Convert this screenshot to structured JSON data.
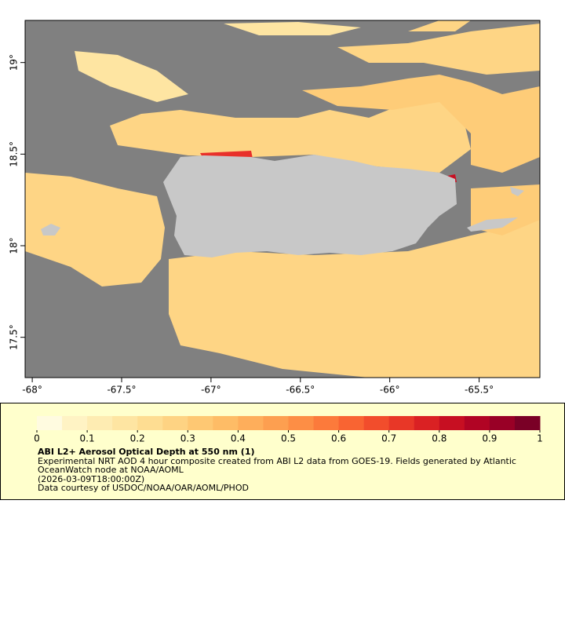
{
  "map": {
    "xlim": [
      -68.04,
      -65.16
    ],
    "ylim": [
      17.28,
      19.23
    ],
    "xticks": [
      {
        "value": -68,
        "label": "-68°"
      },
      {
        "value": -67.5,
        "label": "-67.5°"
      },
      {
        "value": -67,
        "label": "-67°"
      },
      {
        "value": -66.5,
        "label": "-66.5°"
      },
      {
        "value": -66,
        "label": "-66°"
      },
      {
        "value": -65.5,
        "label": "-65.5°"
      }
    ],
    "yticks": [
      {
        "value": 17.5,
        "label": "17.5°"
      },
      {
        "value": 18,
        "label": "18°"
      },
      {
        "value": 18.5,
        "label": "18.5°"
      },
      {
        "value": 19,
        "label": "19°"
      }
    ]
  },
  "colorbar": {
    "range": [
      0,
      1
    ],
    "ticks": [
      0,
      0.1,
      0.2,
      0.3,
      0.4,
      0.5,
      0.6,
      0.7,
      0.8,
      0.9,
      1
    ],
    "colors": [
      "#fffbe0",
      "#fff3c4",
      "#feecb2",
      "#fee5a2",
      "#fedd92",
      "#fed383",
      "#fec873",
      "#febc66",
      "#feae5b",
      "#fd9f50",
      "#fd8e45",
      "#fc7a3b",
      "#f96432",
      "#f24d2c",
      "#e83727",
      "#da2123",
      "#c70f22",
      "#b10424",
      "#990026",
      "#7a0026"
    ]
  },
  "legend": {
    "title": "ABI L2+ Aerosol Optical Depth at 550 nm (1)",
    "description": "Experimental NRT AOD 4 hour composite created from ABI L2 data from GOES-19. Fields generated by Atlantic OceanWatch node at NOAA/AOML",
    "time": "(2026-03-09T18:00:00Z)",
    "credit": "Data courtesy of USDOC/NOAA/OAR/AOML/PHOD"
  }
}
